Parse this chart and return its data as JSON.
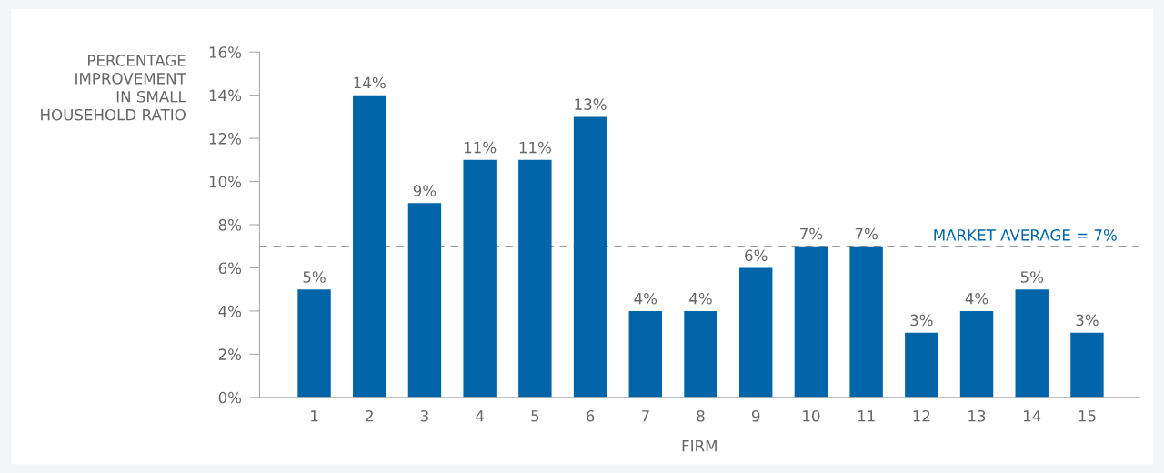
{
  "chart_data": {
    "type": "bar",
    "xlabel": "FIRM",
    "ylabel": "PERCENTAGE\nIMPROVEMENT\nIN SMALL\nHOUSEHOLD RATIO",
    "categories": [
      "1",
      "2",
      "3",
      "4",
      "5",
      "6",
      "7",
      "8",
      "9",
      "10",
      "11",
      "12",
      "13",
      "14",
      "15"
    ],
    "values": [
      5,
      14,
      9,
      11,
      11,
      13,
      4,
      4,
      6,
      7,
      7,
      3,
      4,
      5,
      3
    ],
    "value_labels": [
      "5%",
      "14%",
      "9%",
      "11%",
      "11%",
      "13%",
      "4%",
      "4%",
      "6%",
      "7%",
      "7%",
      "3%",
      "4%",
      "5%",
      "3%"
    ],
    "color": "#0065a8",
    "ylim": [
      0,
      16
    ],
    "yticks": [
      {
        "value": 0,
        "label": "0%"
      },
      {
        "value": 2,
        "label": "2%"
      },
      {
        "value": 4,
        "label": "4%"
      },
      {
        "value": 6,
        "label": "6%"
      },
      {
        "value": 8,
        "label": "8%"
      },
      {
        "value": 10,
        "label": "10%"
      },
      {
        "value": 12,
        "label": "12%"
      },
      {
        "value": 14,
        "label": "14%"
      },
      {
        "value": 16,
        "label": "16%"
      }
    ],
    "ref_lines": [
      {
        "axis": "y",
        "value": 7,
        "label": "MARKET AVERAGE = 7%",
        "color": "#999999",
        "line_style": "dashed"
      }
    ],
    "grid": false,
    "legend": false
  }
}
